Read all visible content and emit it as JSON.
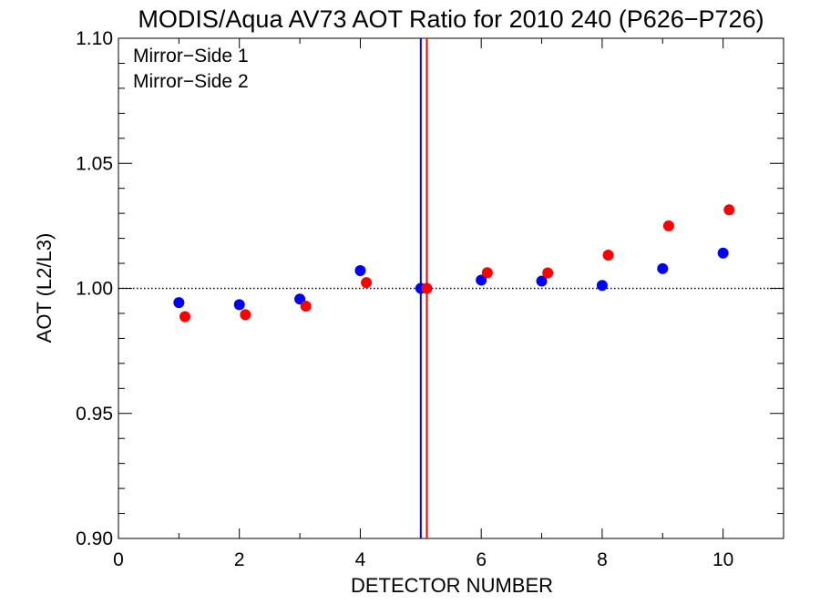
{
  "chart_data": {
    "type": "scatter",
    "title": "MODIS/Aqua AV73 AOT Ratio for 2010 240 (P626−P726)",
    "xlabel": "DETECTOR NUMBER",
    "ylabel": "AOT (L2/L3)",
    "xlim": [
      0,
      11
    ],
    "ylim": [
      0.9,
      1.1
    ],
    "xticks": [
      0,
      2,
      4,
      6,
      8,
      10
    ],
    "xtick_labels": [
      "0",
      "2",
      "4",
      "6",
      "8",
      "10"
    ],
    "yticks": [
      0.9,
      0.95,
      1.0,
      1.05,
      1.1
    ],
    "ytick_labels": [
      "0.90",
      "0.95",
      "1.00",
      "1.05",
      "1.10"
    ],
    "grid": false,
    "legend": "top-left",
    "series": [
      {
        "name": "Mirror−Side 1",
        "color": "#0000ff",
        "x": [
          1,
          2,
          3,
          4,
          5,
          6,
          7,
          8,
          9,
          10
        ],
        "values": [
          0.9943,
          0.9935,
          0.9957,
          1.0071,
          1.0,
          1.0033,
          1.0029,
          1.0012,
          1.0079,
          1.0141
        ]
      },
      {
        "name": "Mirror−Side 2",
        "color": "#ff0000",
        "x": [
          1.1,
          2.1,
          3.1,
          4.1,
          5.1,
          6.1,
          7.1,
          8.1,
          9.1,
          10.1
        ],
        "values": [
          0.9887,
          0.9895,
          0.9929,
          1.0023,
          1.0,
          1.0063,
          1.0062,
          1.0133,
          1.025,
          1.0314
        ]
      }
    ],
    "reference_lines": [
      {
        "orientation": "horizontal",
        "value": 1.0,
        "style": "dotted",
        "color": "#000000"
      },
      {
        "orientation": "vertical",
        "value": 5.0,
        "style": "solid",
        "color": "#0000ff"
      },
      {
        "orientation": "vertical",
        "value": 5.1,
        "style": "solid",
        "color": "#ff0000"
      }
    ]
  }
}
